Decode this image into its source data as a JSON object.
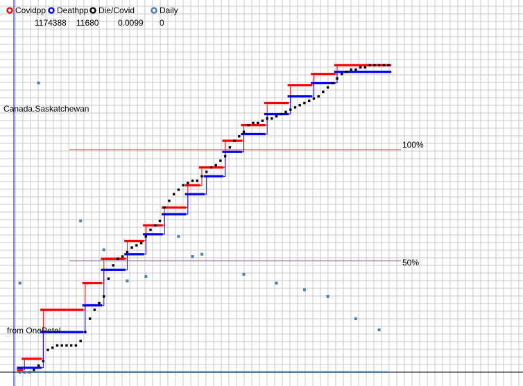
{
  "chart_data": {
    "type": "line",
    "title": "",
    "xlabel": "",
    "ylabel": "",
    "grid": true,
    "legend_placement": "top-left",
    "region_label": "Canada.Saskatchewan",
    "source_label": "from OnePetel",
    "legend": [
      {
        "key": "covidpp",
        "label": "Covidpp",
        "value": "1174388",
        "color": "#ff0000"
      },
      {
        "key": "deathpp",
        "label": "Deathpp",
        "value": "11680",
        "color": "#0000ff"
      },
      {
        "key": "die_covid",
        "label": "Die/Covid",
        "value": "0.0099",
        "color": "#000000"
      },
      {
        "key": "daily",
        "label": "Daily",
        "value": "0",
        "color": "#4682b4"
      }
    ],
    "reference_lines": [
      {
        "label": "100%",
        "value": 100,
        "color": "#c04040"
      },
      {
        "label": "50%",
        "value": 50,
        "color": "#804080"
      }
    ],
    "ylim": [
      -4,
      152
    ],
    "xlim": [
      0,
      80
    ],
    "series": [
      {
        "name": "Covidpp",
        "color": "#ff0000",
        "points": [
          [
            1,
            1
          ],
          [
            2,
            6
          ],
          [
            3,
            6
          ],
          [
            4,
            6
          ],
          [
            5,
            6
          ],
          [
            6,
            28
          ],
          [
            7,
            28
          ],
          [
            8,
            28
          ],
          [
            9,
            28
          ],
          [
            10,
            28
          ],
          [
            11,
            28
          ],
          [
            12,
            28
          ],
          [
            13,
            28
          ],
          [
            14,
            28
          ],
          [
            15,
            40
          ],
          [
            16,
            40
          ],
          [
            17,
            40
          ],
          [
            18,
            40
          ],
          [
            19,
            51
          ],
          [
            20,
            51
          ],
          [
            21,
            51
          ],
          [
            22,
            51
          ],
          [
            23,
            51
          ],
          [
            24,
            59
          ],
          [
            25,
            59
          ],
          [
            26,
            59
          ],
          [
            27,
            59
          ],
          [
            28,
            66
          ],
          [
            29,
            66
          ],
          [
            30,
            66
          ],
          [
            31,
            66
          ],
          [
            32,
            74
          ],
          [
            33,
            74
          ],
          [
            34,
            74
          ],
          [
            35,
            74
          ],
          [
            36,
            74
          ],
          [
            37,
            84
          ],
          [
            38,
            84
          ],
          [
            39,
            84
          ],
          [
            40,
            92
          ],
          [
            41,
            92
          ],
          [
            42,
            92
          ],
          [
            43,
            92
          ],
          [
            44,
            92
          ],
          [
            45,
            104
          ],
          [
            46,
            104
          ],
          [
            47,
            104
          ],
          [
            48,
            104
          ],
          [
            49,
            111
          ],
          [
            50,
            111
          ],
          [
            51,
            111
          ],
          [
            52,
            111
          ],
          [
            53,
            111
          ],
          [
            54,
            121
          ],
          [
            55,
            121
          ],
          [
            56,
            121
          ],
          [
            57,
            121
          ],
          [
            58,
            121
          ],
          [
            59,
            129
          ],
          [
            60,
            129
          ],
          [
            61,
            129
          ],
          [
            62,
            129
          ],
          [
            63,
            129
          ],
          [
            64,
            134
          ],
          [
            65,
            134
          ],
          [
            66,
            134
          ],
          [
            67,
            134
          ],
          [
            68,
            134
          ],
          [
            69,
            138
          ],
          [
            70,
            138
          ],
          [
            71,
            138
          ],
          [
            72,
            138
          ],
          [
            73,
            138
          ],
          [
            74,
            138
          ],
          [
            75,
            138
          ],
          [
            76,
            138
          ],
          [
            77,
            138
          ],
          [
            78,
            138
          ],
          [
            79,
            138
          ],
          [
            80,
            138
          ]
        ]
      },
      {
        "name": "Deathpp",
        "color": "#0000ff",
        "points": [
          [
            1,
            2
          ],
          [
            2,
            2
          ],
          [
            3,
            2
          ],
          [
            4,
            2
          ],
          [
            5,
            2
          ],
          [
            6,
            18
          ],
          [
            7,
            18
          ],
          [
            8,
            18
          ],
          [
            9,
            18
          ],
          [
            10,
            18
          ],
          [
            11,
            18
          ],
          [
            12,
            18
          ],
          [
            13,
            18
          ],
          [
            14,
            18
          ],
          [
            15,
            30
          ],
          [
            16,
            30
          ],
          [
            17,
            30
          ],
          [
            18,
            30
          ],
          [
            19,
            46
          ],
          [
            20,
            46
          ],
          [
            21,
            46
          ],
          [
            22,
            46
          ],
          [
            23,
            46
          ],
          [
            24,
            53
          ],
          [
            25,
            53
          ],
          [
            26,
            53
          ],
          [
            27,
            53
          ],
          [
            28,
            62
          ],
          [
            29,
            62
          ],
          [
            30,
            62
          ],
          [
            31,
            62
          ],
          [
            32,
            71
          ],
          [
            33,
            71
          ],
          [
            34,
            71
          ],
          [
            35,
            71
          ],
          [
            36,
            71
          ],
          [
            37,
            80
          ],
          [
            38,
            80
          ],
          [
            39,
            80
          ],
          [
            40,
            80
          ],
          [
            41,
            88
          ],
          [
            42,
            88
          ],
          [
            43,
            88
          ],
          [
            44,
            88
          ],
          [
            45,
            99
          ],
          [
            46,
            99
          ],
          [
            47,
            99
          ],
          [
            48,
            99
          ],
          [
            49,
            107
          ],
          [
            50,
            107
          ],
          [
            51,
            107
          ],
          [
            52,
            107
          ],
          [
            53,
            107
          ],
          [
            54,
            116
          ],
          [
            55,
            116
          ],
          [
            56,
            116
          ],
          [
            57,
            116
          ],
          [
            58,
            116
          ],
          [
            59,
            124
          ],
          [
            60,
            124
          ],
          [
            61,
            124
          ],
          [
            62,
            124
          ],
          [
            63,
            124
          ],
          [
            64,
            130
          ],
          [
            65,
            130
          ],
          [
            66,
            130
          ],
          [
            67,
            130
          ],
          [
            68,
            130
          ],
          [
            69,
            135
          ],
          [
            70,
            135
          ],
          [
            71,
            135
          ],
          [
            72,
            135
          ],
          [
            73,
            135
          ],
          [
            74,
            135
          ],
          [
            75,
            135
          ],
          [
            76,
            135
          ],
          [
            77,
            135
          ],
          [
            78,
            135
          ],
          [
            79,
            135
          ],
          [
            80,
            135
          ]
        ]
      },
      {
        "name": "Die/Covid",
        "color": "#000000",
        "points": [
          [
            1,
            0
          ],
          [
            2,
            0
          ],
          [
            3,
            0
          ],
          [
            4,
            1
          ],
          [
            5,
            3
          ],
          [
            6,
            5
          ],
          [
            7,
            10
          ],
          [
            8,
            11
          ],
          [
            9,
            12
          ],
          [
            10,
            12
          ],
          [
            11,
            12
          ],
          [
            12,
            12
          ],
          [
            13,
            12
          ],
          [
            14,
            14
          ],
          [
            15,
            18
          ],
          [
            16,
            24
          ],
          [
            17,
            28
          ],
          [
            18,
            31
          ],
          [
            19,
            34
          ],
          [
            20,
            42
          ],
          [
            21,
            48
          ],
          [
            22,
            51
          ],
          [
            23,
            52
          ],
          [
            24,
            54
          ],
          [
            25,
            56
          ],
          [
            26,
            57
          ],
          [
            27,
            58
          ],
          [
            28,
            61
          ],
          [
            29,
            64
          ],
          [
            30,
            66
          ],
          [
            31,
            68
          ],
          [
            32,
            74
          ],
          [
            33,
            77
          ],
          [
            34,
            80
          ],
          [
            35,
            82
          ],
          [
            36,
            84
          ],
          [
            37,
            85
          ],
          [
            38,
            86
          ],
          [
            39,
            86
          ],
          [
            40,
            88
          ],
          [
            41,
            90
          ],
          [
            42,
            92
          ],
          [
            43,
            93
          ],
          [
            44,
            95
          ],
          [
            45,
            97
          ],
          [
            46,
            101
          ],
          [
            47,
            104
          ],
          [
            48,
            106
          ],
          [
            49,
            108
          ],
          [
            50,
            111
          ],
          [
            51,
            112
          ],
          [
            52,
            112
          ],
          [
            53,
            113
          ],
          [
            54,
            114
          ],
          [
            55,
            114
          ],
          [
            56,
            115
          ],
          [
            57,
            116
          ],
          [
            58,
            117
          ],
          [
            59,
            118
          ],
          [
            60,
            119
          ],
          [
            61,
            120
          ],
          [
            62,
            121
          ],
          [
            63,
            122
          ],
          [
            64,
            123
          ],
          [
            65,
            124
          ],
          [
            66,
            126
          ],
          [
            67,
            128
          ],
          [
            68,
            130
          ],
          [
            69,
            132
          ],
          [
            70,
            134
          ],
          [
            71,
            135
          ],
          [
            72,
            136
          ],
          [
            73,
            136
          ],
          [
            74,
            137
          ],
          [
            75,
            137
          ],
          [
            76,
            138
          ],
          [
            77,
            138
          ],
          [
            78,
            138
          ],
          [
            79,
            138
          ],
          [
            80,
            138
          ]
        ]
      },
      {
        "name": "Daily",
        "color": "#4682b4",
        "points": [
          [
            1,
            40
          ],
          [
            5,
            130
          ],
          [
            14,
            68
          ],
          [
            19,
            55
          ],
          [
            24,
            41
          ],
          [
            28,
            43
          ],
          [
            35,
            61
          ],
          [
            38,
            52
          ],
          [
            40,
            53
          ],
          [
            49,
            44
          ],
          [
            56,
            40
          ],
          [
            62,
            37
          ],
          [
            67,
            34
          ],
          [
            73,
            24
          ],
          [
            78,
            19
          ]
        ],
        "baseline_value": 0
      }
    ]
  }
}
